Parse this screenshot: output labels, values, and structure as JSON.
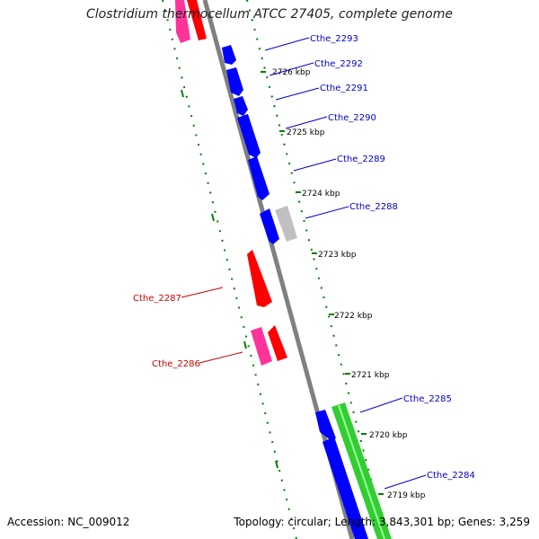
{
  "title": "Clostridium thermocellum ATCC 27405, complete genome",
  "accession_label": "Accession: NC_009012",
  "summary_label": "Topology: circular; Length: 3,843,301 bp; Genes: 3,259",
  "colors": {
    "forward_gene": "#ff0000",
    "reverse_gene": "#0000ff",
    "pseudo_gene": "#ff66aa",
    "other_feature": "#c0c0c0",
    "rrna_feature": "#33cc33",
    "label_forward": "#cc0000",
    "label_reverse": "#0000cc",
    "backbone": "#808080",
    "dotted_track": "#008000"
  },
  "kbp_ticks": [
    "2726 kbp",
    "2725 kbp",
    "2724 kbp",
    "2723 kbp",
    "2722 kbp",
    "2721 kbp",
    "2720 kbp",
    "2719 kbp"
  ],
  "genes_reverse": [
    "Cthe_2293",
    "Cthe_2292",
    "Cthe_2291",
    "Cthe_2290",
    "Cthe_2289",
    "Cthe_2288",
    "Cthe_2285",
    "Cthe_2284"
  ],
  "genes_forward": [
    "Cthe_2287",
    "Cthe_2286"
  ]
}
